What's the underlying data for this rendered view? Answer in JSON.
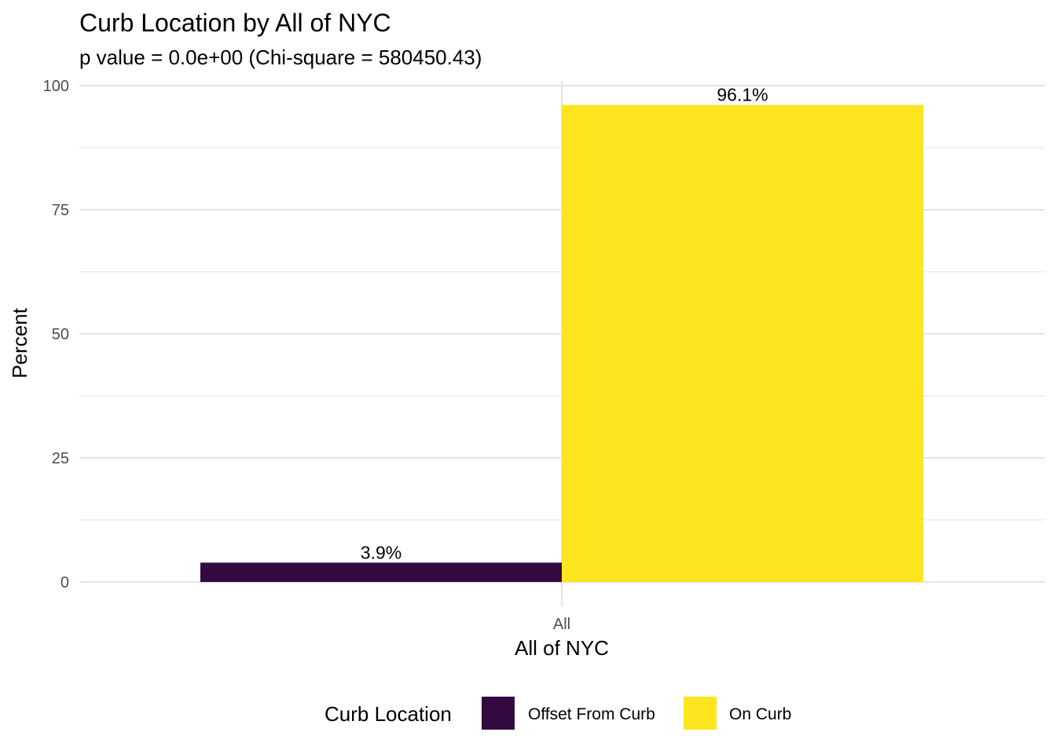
{
  "chart_data": {
    "type": "bar",
    "title": "Curb Location by All of NYC",
    "subtitle": "p value = 0.0e+00 (Chi-square = 580450.43)",
    "xlabel": "All of NYC",
    "ylabel": "Percent",
    "categories": [
      "All"
    ],
    "ylim": [
      0,
      100
    ],
    "yticks": [
      0,
      25,
      50,
      75,
      100
    ],
    "grid": true,
    "series": [
      {
        "name": "Offset From Curb",
        "values": [
          3.9
        ],
        "label": "3.9%",
        "color": "#320A41"
      },
      {
        "name": "On Curb",
        "values": [
          96.1
        ],
        "label": "96.1%",
        "color": "#FDE51F"
      }
    ],
    "legend": {
      "title": "Curb Location",
      "position": "bottom"
    }
  }
}
